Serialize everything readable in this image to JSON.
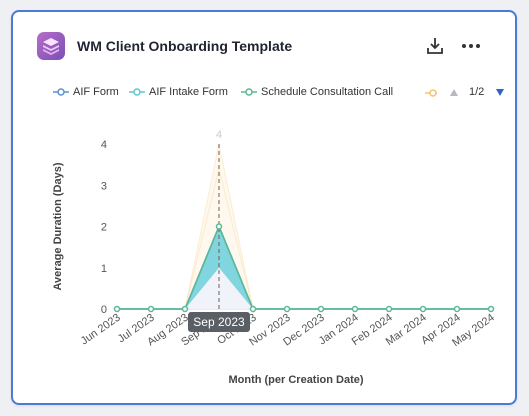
{
  "header": {
    "title": "WM Client Onboarding Template",
    "icons": {
      "logo": "layers-icon",
      "download": "download-icon",
      "more": "more-horizontal-icon"
    }
  },
  "legend": {
    "items": [
      {
        "label": "AIF Form",
        "color": "#5b8fd4"
      },
      {
        "label": "AIF Intake Form",
        "color": "#5bc8d0"
      },
      {
        "label": "Schedule Consultation Call",
        "color": "#5cb892"
      }
    ],
    "cut_item_color": "#f5c26b",
    "pager": "1/2"
  },
  "chart_data": {
    "type": "area",
    "xlabel": "Month (per Creation Date)",
    "ylabel": "Average Duration (Days)",
    "categories": [
      "Jun 2023",
      "Jul 2023",
      "Aug 2023",
      "Sep 2023",
      "Oct 2023",
      "Nov 2023",
      "Dec 2023",
      "Jan 2024",
      "Feb 2024",
      "Mar 2024",
      "Apr 2024",
      "May 2024"
    ],
    "ylim": [
      0,
      4
    ],
    "yticks": [
      0,
      1,
      2,
      3,
      4
    ],
    "series": [
      {
        "name": "AIF Form",
        "color": "#5b8fd4",
        "values": [
          0,
          0,
          0,
          2,
          0,
          0,
          0,
          0,
          0,
          0,
          0,
          0
        ]
      },
      {
        "name": "AIF Intake Form",
        "color": "#5bc8d0",
        "values": [
          0,
          0,
          0,
          2,
          0,
          0,
          0,
          0,
          0,
          0,
          0,
          0
        ],
        "band_lower": [
          0,
          0,
          0,
          1,
          0,
          0,
          0,
          0,
          0,
          0,
          0,
          0
        ]
      },
      {
        "name": "Schedule Consultation Call",
        "color": "#5cb892",
        "values": [
          0,
          0,
          0,
          2,
          0,
          0,
          0,
          0,
          0,
          0,
          0,
          0
        ]
      },
      {
        "color": "#f5c26b",
        "values": [
          0,
          0,
          0,
          4,
          0,
          0,
          0,
          0,
          0,
          0,
          0,
          0
        ]
      }
    ],
    "hover": {
      "category": "Sep 2023",
      "tooltip": "Sep 2023",
      "peak_label": "4"
    }
  }
}
